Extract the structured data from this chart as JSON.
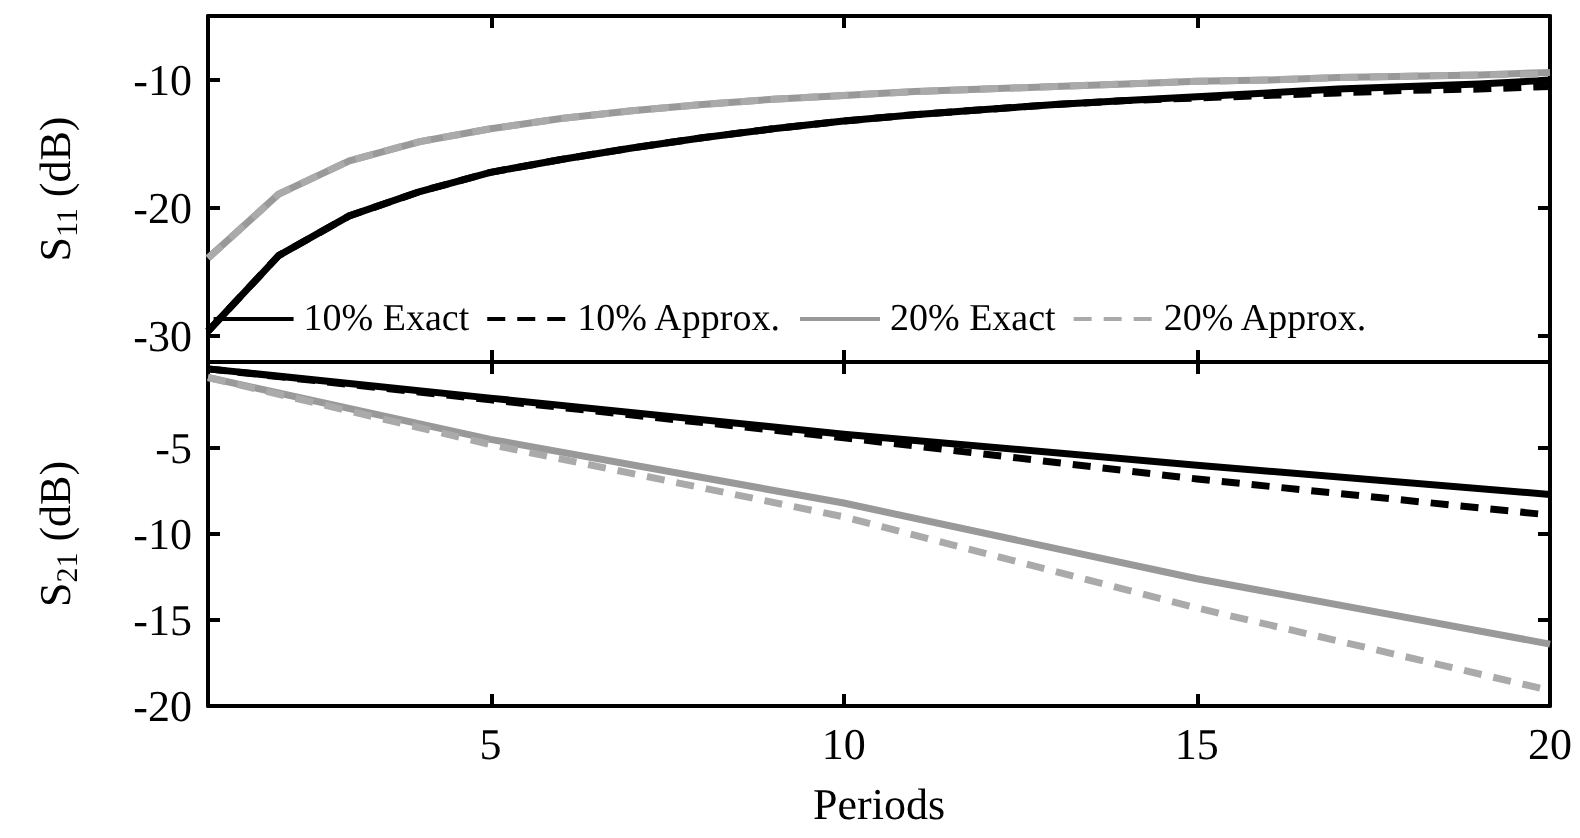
{
  "chart_data": [
    {
      "type": "line",
      "ylabel": "S$_{11}$ (dB)",
      "xlim": [
        1,
        20
      ],
      "xticks": [
        5,
        10,
        15,
        20
      ],
      "ylim": [
        -32,
        -5
      ],
      "yticks": [
        -30,
        -20,
        -10
      ],
      "tick_labels": "y",
      "legend": "bottom",
      "x": [
        1,
        2,
        3,
        4,
        5,
        6,
        7,
        8,
        9,
        10,
        11,
        12,
        13,
        14,
        15,
        16,
        17,
        18,
        19,
        20
      ],
      "series": [
        {
          "name": "10% Exact",
          "color": "#000000",
          "line_style": "solid",
          "values": [
            -29.6,
            -23.7,
            -20.6,
            -18.7,
            -17.2,
            -16.2,
            -15.3,
            -14.5,
            -13.8,
            -13.2,
            -12.7,
            -12.3,
            -11.9,
            -11.6,
            -11.3,
            -11.0,
            -10.7,
            -10.5,
            -10.3,
            -10.0
          ]
        },
        {
          "name": "10% Approx.",
          "color": "#000000",
          "line_style": "dashed",
          "values": [
            -29.6,
            -23.7,
            -20.6,
            -18.7,
            -17.2,
            -16.2,
            -15.3,
            -14.5,
            -13.8,
            -13.2,
            -12.7,
            -12.3,
            -11.9,
            -11.6,
            -11.4,
            -11.2,
            -11.0,
            -10.8,
            -10.7,
            -10.5
          ]
        },
        {
          "name": "20% Exact",
          "color": "#999999",
          "line_style": "solid",
          "values": [
            -23.9,
            -18.9,
            -16.3,
            -14.8,
            -13.8,
            -13.0,
            -12.4,
            -11.9,
            -11.5,
            -11.2,
            -10.9,
            -10.7,
            -10.5,
            -10.3,
            -10.1,
            -10.0,
            -9.8,
            -9.7,
            -9.6,
            -9.4
          ]
        },
        {
          "name": "20% Approx.",
          "color": "#aaaaaa",
          "line_style": "dashed",
          "values": [
            -23.9,
            -18.9,
            -16.3,
            -14.8,
            -13.8,
            -13.0,
            -12.4,
            -11.9,
            -11.5,
            -11.2,
            -10.9,
            -10.7,
            -10.5,
            -10.3,
            -10.1,
            -10.0,
            -9.8,
            -9.7,
            -9.6,
            -9.5
          ]
        }
      ]
    },
    {
      "type": "line",
      "xlabel": "Periods",
      "ylabel": "S$_{21}$ (dB)",
      "xlim": [
        1,
        20
      ],
      "xticks": [
        5,
        10,
        15,
        20
      ],
      "ylim": [
        -20,
        0
      ],
      "yticks": [
        -20,
        -15,
        -10,
        -5
      ],
      "x": [
        1,
        5,
        10,
        15,
        20
      ],
      "series": [
        {
          "color": "#000000",
          "line_style": "solid",
          "values": [
            -0.4,
            -2.1,
            -4.2,
            -6.0,
            -7.7
          ]
        },
        {
          "color": "#000000",
          "line_style": "dashed",
          "values": [
            -0.4,
            -2.2,
            -4.4,
            -6.8,
            -8.9
          ]
        },
        {
          "color": "#999999",
          "line_style": "solid",
          "values": [
            -0.9,
            -4.5,
            -8.2,
            -12.6,
            -16.4
          ]
        },
        {
          "color": "#aaaaaa",
          "line_style": "dashed",
          "values": [
            -0.9,
            -4.8,
            -9.0,
            -14.3,
            -19.1
          ]
        }
      ]
    }
  ]
}
